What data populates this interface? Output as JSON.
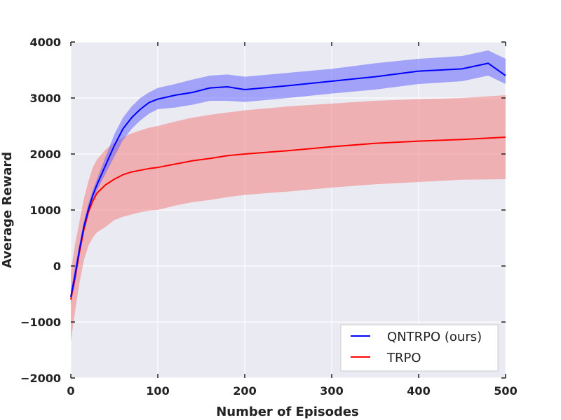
{
  "chart_data": {
    "type": "line",
    "title": "",
    "xlabel": "Number of Episodes",
    "ylabel": "Average Reward",
    "xlim": [
      0,
      500
    ],
    "ylim": [
      -2000,
      4000
    ],
    "xticks": [
      "0",
      "100",
      "200",
      "300",
      "400",
      "500"
    ],
    "yticks": [
      "−2000",
      "−1000",
      "0",
      "1000",
      "2000",
      "3000",
      "4000"
    ],
    "grid": true,
    "legend_position": "lower-right",
    "series": [
      {
        "name": "QNTRPO (ours)",
        "color": "#0000ff",
        "band_color": "#6666ff",
        "x": [
          0,
          5,
          10,
          15,
          20,
          25,
          30,
          40,
          50,
          60,
          70,
          80,
          90,
          100,
          120,
          140,
          160,
          180,
          200,
          250,
          300,
          350,
          400,
          450,
          480,
          500
        ],
        "y": [
          -550,
          -150,
          300,
          700,
          1000,
          1250,
          1450,
          1800,
          2150,
          2450,
          2650,
          2800,
          2920,
          2980,
          3050,
          3100,
          3180,
          3200,
          3150,
          3220,
          3300,
          3380,
          3480,
          3520,
          3620,
          3400
        ],
        "lower": [
          -650,
          -300,
          200,
          600,
          900,
          1150,
          1350,
          1650,
          1950,
          2250,
          2450,
          2600,
          2720,
          2800,
          2830,
          2880,
          2950,
          2950,
          2930,
          3000,
          3080,
          3150,
          3250,
          3300,
          3400,
          3250
        ],
        "upper": [
          -450,
          0,
          400,
          800,
          1100,
          1350,
          1550,
          1950,
          2350,
          2650,
          2850,
          3000,
          3100,
          3180,
          3250,
          3330,
          3400,
          3420,
          3380,
          3450,
          3520,
          3620,
          3700,
          3750,
          3850,
          3700
        ]
      },
      {
        "name": "TRPO",
        "color": "#ff0000",
        "band_color": "#f08080",
        "x": [
          0,
          5,
          10,
          15,
          20,
          25,
          30,
          40,
          50,
          60,
          70,
          80,
          90,
          100,
          120,
          140,
          160,
          180,
          200,
          250,
          300,
          350,
          400,
          450,
          500
        ],
        "y": [
          -600,
          -200,
          250,
          650,
          950,
          1150,
          1300,
          1450,
          1550,
          1630,
          1680,
          1710,
          1740,
          1760,
          1820,
          1880,
          1920,
          1970,
          2000,
          2060,
          2130,
          2190,
          2230,
          2260,
          2300
        ],
        "lower": [
          -1350,
          -800,
          -300,
          100,
          350,
          500,
          600,
          700,
          820,
          880,
          920,
          960,
          990,
          1000,
          1080,
          1140,
          1180,
          1230,
          1270,
          1330,
          1400,
          1460,
          1500,
          1540,
          1550
        ],
        "upper": [
          -100,
          400,
          800,
          1200,
          1500,
          1750,
          1900,
          2080,
          2200,
          2300,
          2370,
          2420,
          2470,
          2500,
          2580,
          2650,
          2700,
          2740,
          2780,
          2850,
          2900,
          2950,
          2980,
          3000,
          3050
        ]
      }
    ]
  }
}
